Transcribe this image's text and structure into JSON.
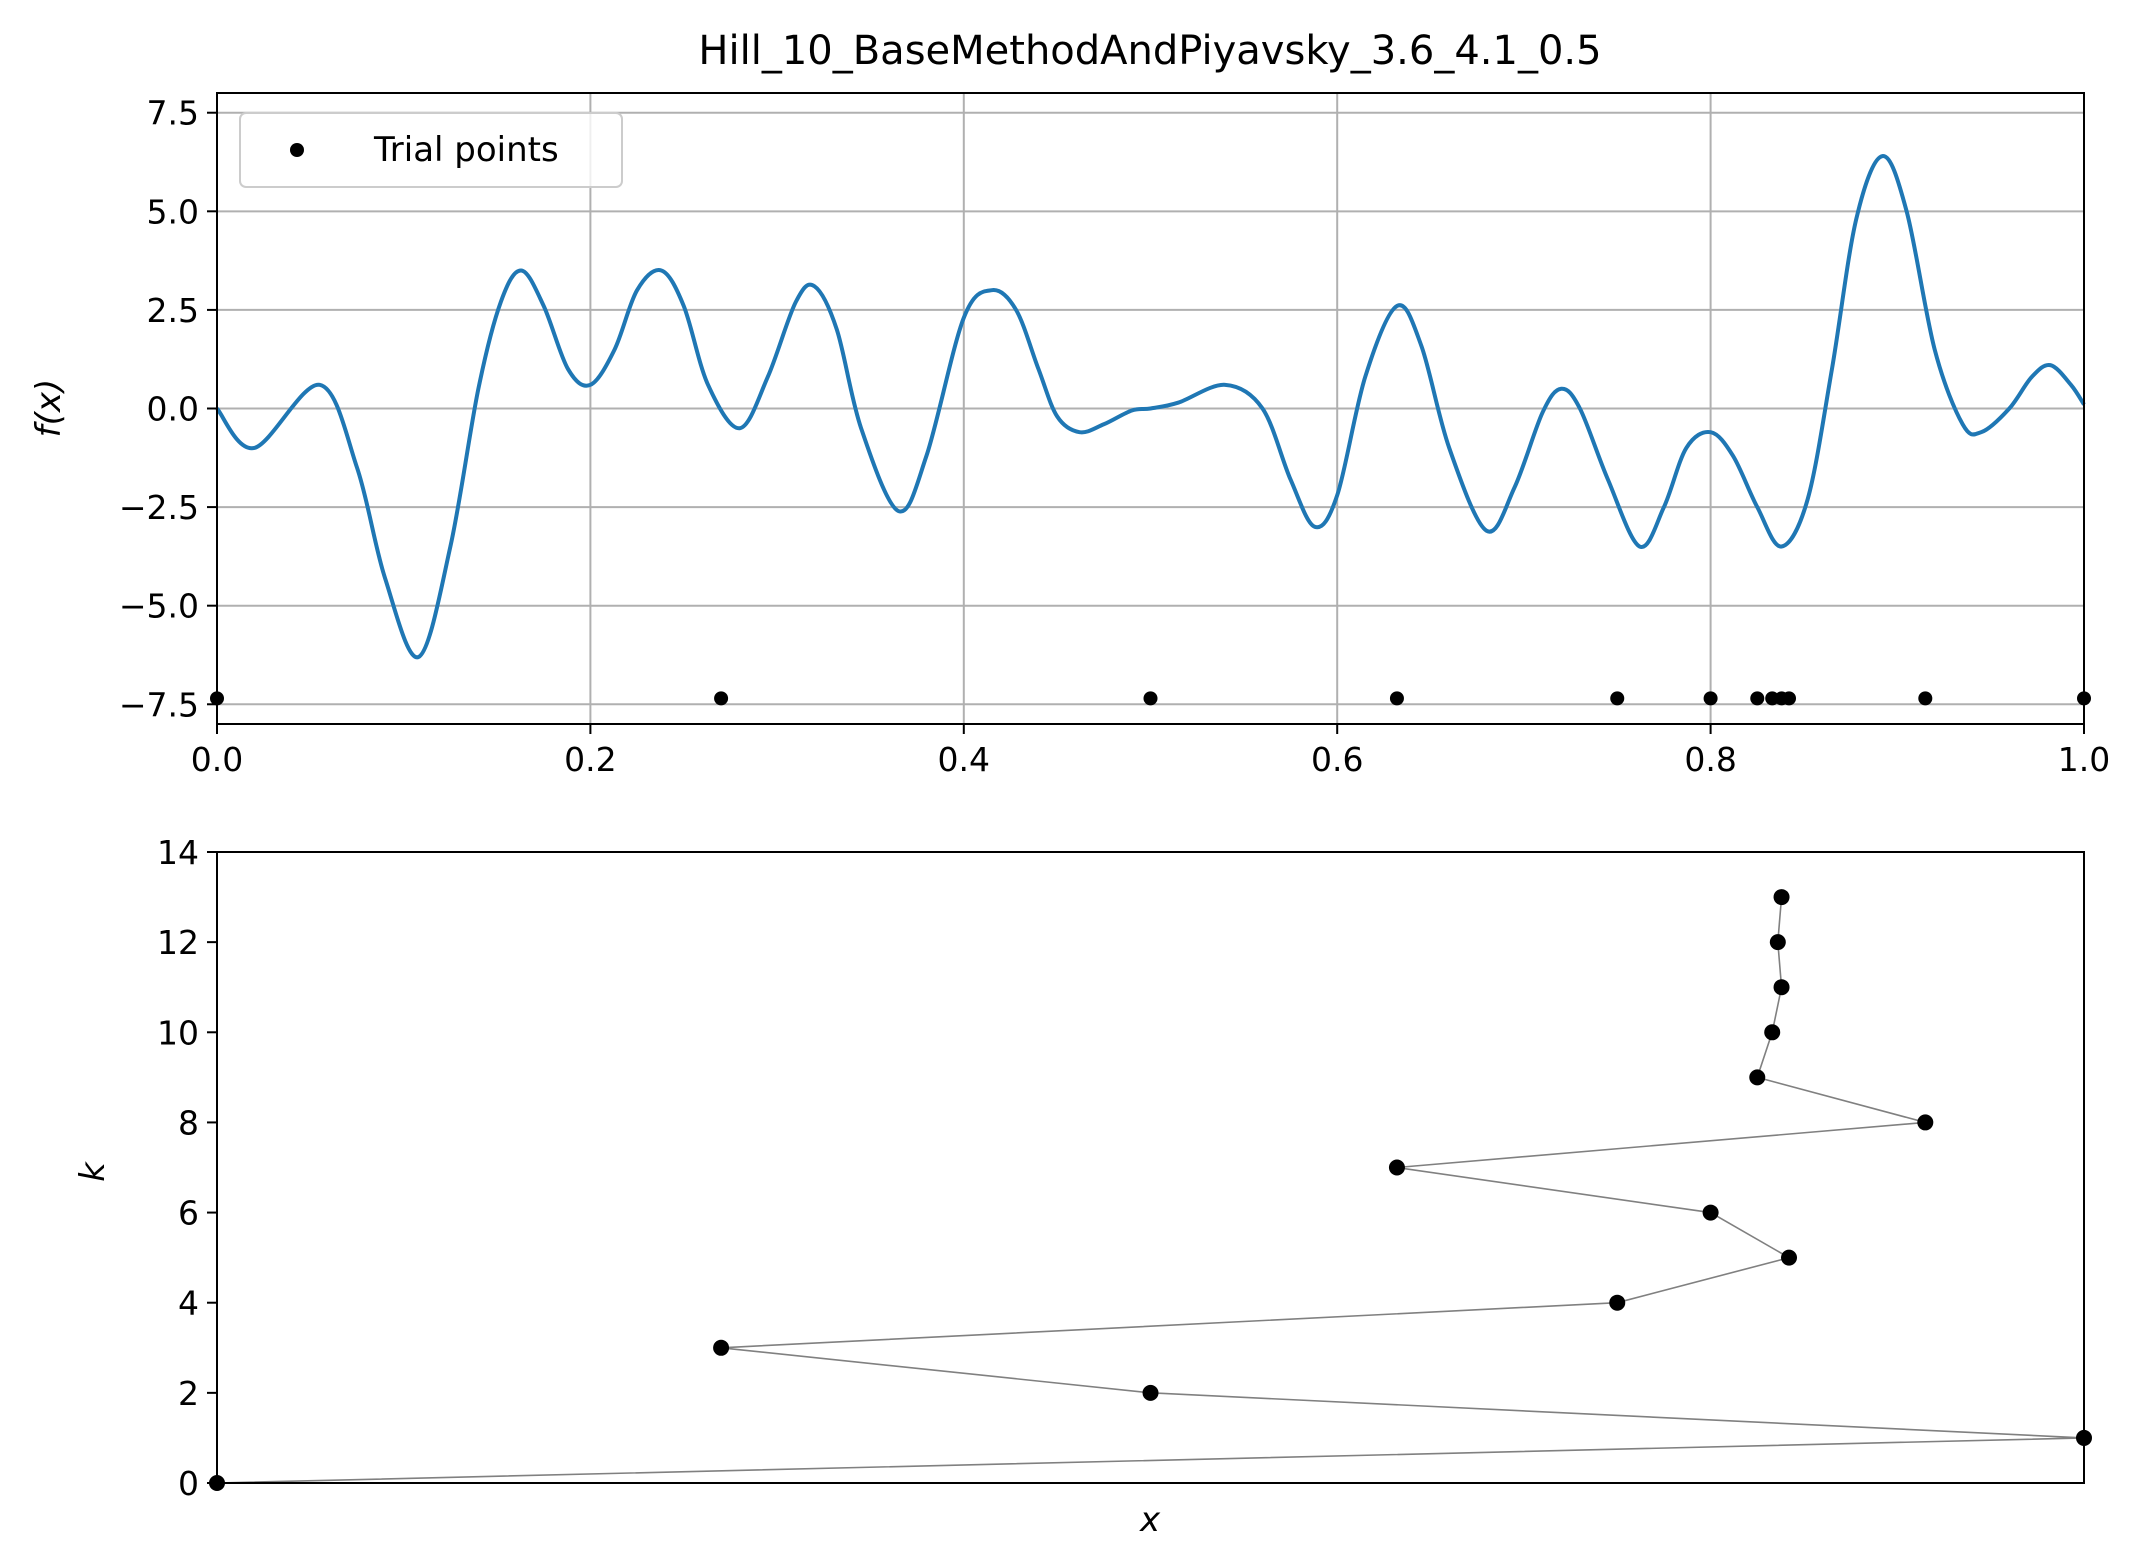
{
  "chart_data": [
    {
      "type": "line",
      "title": "Hill_10_BaseMethodAndPiyavsky_3.6_4.1_0.5",
      "xlabel": "",
      "ylabel": "f(x)",
      "xlim": [
        0.0,
        1.0
      ],
      "ylim": [
        -8.0,
        8.0
      ],
      "grid": true,
      "legend": {
        "location": "upper-left",
        "entries": [
          "Trial points"
        ]
      },
      "x_ticks": [
        "0.0",
        "0.2",
        "0.4",
        "0.6",
        "0.8",
        "1.0"
      ],
      "y_ticks": [
        "7.5",
        "5.0",
        "2.5",
        "0.0",
        "−2.5",
        "−5.0",
        "−7.5"
      ],
      "y_tick_values": [
        7.5,
        5.0,
        2.5,
        0.0,
        -2.5,
        -5.0,
        -7.5
      ],
      "x_tick_values": [
        0.0,
        0.2,
        0.4,
        0.6,
        0.8,
        1.0
      ],
      "series": [
        {
          "kind": "line",
          "color": "#1f77b4",
          "x": [
            0.0,
            0.02,
            0.055,
            0.075,
            0.09,
            0.108,
            0.125,
            0.14,
            0.152,
            0.163,
            0.175,
            0.188,
            0.2,
            0.213,
            0.225,
            0.238,
            0.25,
            0.263,
            0.28,
            0.295,
            0.31,
            0.32,
            0.332,
            0.345,
            0.365,
            0.38,
            0.4,
            0.415,
            0.428,
            0.44,
            0.45,
            0.462,
            0.475,
            0.49,
            0.5,
            0.515,
            0.54,
            0.56,
            0.575,
            0.588,
            0.6,
            0.615,
            0.632,
            0.645,
            0.66,
            0.68,
            0.695,
            0.71,
            0.72,
            0.73,
            0.745,
            0.762,
            0.775,
            0.787,
            0.8,
            0.812,
            0.825,
            0.838,
            0.852,
            0.865,
            0.878,
            0.892,
            0.905,
            0.92,
            0.935,
            0.945,
            0.96,
            0.972,
            0.982,
            0.993,
            1.0
          ],
          "values": [
            0.0,
            -1.0,
            0.6,
            -1.5,
            -4.3,
            -6.3,
            -3.5,
            0.5,
            2.7,
            3.5,
            2.6,
            1.0,
            0.6,
            1.5,
            3.0,
            3.5,
            2.6,
            0.6,
            -0.5,
            0.8,
            2.7,
            3.1,
            2.0,
            -0.5,
            -2.6,
            -1.2,
            2.3,
            3.0,
            2.5,
            1.0,
            -0.2,
            -0.6,
            -0.4,
            -0.05,
            0.0,
            0.15,
            0.6,
            0.0,
            -1.8,
            -3.0,
            -2.2,
            0.8,
            2.6,
            1.6,
            -1.0,
            -3.1,
            -2.0,
            -0.1,
            0.5,
            0.0,
            -1.8,
            -3.5,
            -2.5,
            -1.0,
            -0.6,
            -1.2,
            -2.5,
            -3.5,
            -2.3,
            1.0,
            4.8,
            6.4,
            5.0,
            1.5,
            -0.4,
            -0.6,
            0.0,
            0.8,
            1.1,
            0.6,
            0.1
          ]
        },
        {
          "kind": "scatter",
          "name": "Trial points",
          "color": "#000000",
          "x": [
            0.0,
            0.27,
            0.5,
            0.632,
            0.75,
            0.8,
            0.825,
            0.833,
            0.838,
            0.842,
            0.915,
            1.0
          ],
          "values": [
            -7.35,
            -7.35,
            -7.35,
            -7.35,
            -7.35,
            -7.35,
            -7.35,
            -7.35,
            -7.35,
            -7.35,
            -7.35,
            -7.35
          ]
        }
      ]
    },
    {
      "type": "line",
      "title": "",
      "xlabel": "x",
      "ylabel": "k",
      "xlim": [
        0.0,
        1.0
      ],
      "ylim": [
        0,
        14
      ],
      "grid": false,
      "y_ticks": [
        "0",
        "2",
        "4",
        "6",
        "8",
        "10",
        "12",
        "14"
      ],
      "y_tick_values": [
        0,
        2,
        4,
        6,
        8,
        10,
        12,
        14
      ],
      "series": [
        {
          "kind": "line-markers",
          "line_color": "#808080",
          "marker_color": "#000000",
          "x": [
            0.0,
            1.0,
            0.5,
            0.27,
            0.75,
            0.842,
            0.8,
            0.632,
            0.915,
            0.825,
            0.833,
            0.838,
            0.836,
            0.838
          ],
          "values": [
            0,
            1,
            2,
            3,
            4,
            5,
            6,
            7,
            8,
            9,
            10,
            11,
            12,
            13
          ]
        }
      ]
    }
  ]
}
